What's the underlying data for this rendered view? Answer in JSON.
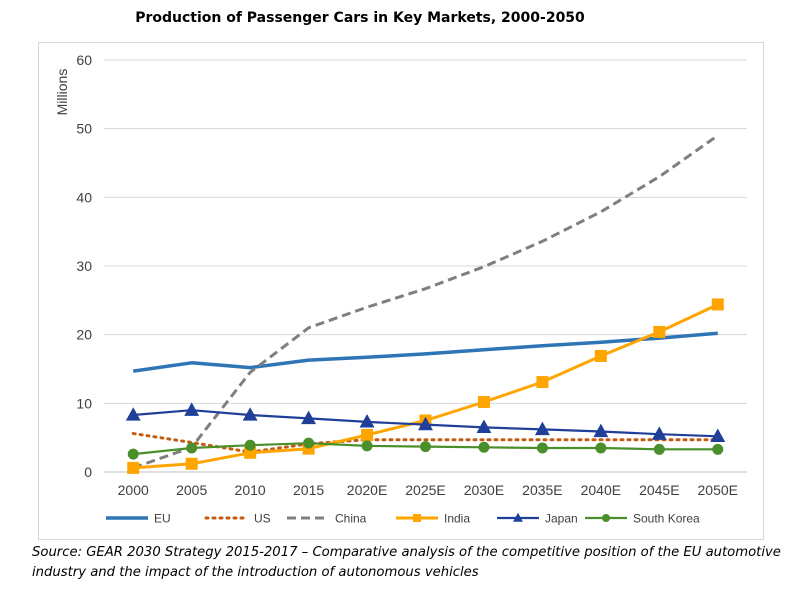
{
  "title": "Production of Passenger Cars in Key Markets, 2000-2050",
  "source": "Source: GEAR 2030 Strategy 2015-2017 – Comparative analysis of the competitive position of the EU automotive industry and the impact of the introduction of autonomous vehicles",
  "chart_data": {
    "type": "line",
    "title": "Production of Passenger Cars in Key Markets, 2000-2050",
    "xlabel": "",
    "ylabel": "Millions",
    "ylim": [
      0,
      60
    ],
    "yticks": [
      0,
      10,
      20,
      30,
      40,
      50,
      60
    ],
    "grid": true,
    "legend_position": "bottom",
    "categories": [
      "2000",
      "2005",
      "2010",
      "2015",
      "2020E",
      "2025E",
      "2030E",
      "2035E",
      "2040E",
      "2045E",
      "2050E"
    ],
    "series": [
      {
        "name": "EU",
        "color": "#2e75b6",
        "style": "solid",
        "marker": "none",
        "values": [
          14.7,
          15.9,
          15.2,
          16.3,
          16.7,
          17.2,
          17.8,
          18.4,
          18.9,
          19.5,
          20.2
        ]
      },
      {
        "name": "US",
        "color": "#c55a11",
        "style": "dotted",
        "marker": "none",
        "values": [
          5.6,
          4.3,
          2.9,
          4.1,
          4.7,
          4.7,
          4.7,
          4.7,
          4.7,
          4.7,
          4.7
        ]
      },
      {
        "name": "China",
        "color": "#7f7f7f",
        "style": "dashed",
        "marker": "none",
        "values": [
          0.6,
          3.6,
          14.5,
          21.0,
          24.0,
          26.7,
          29.9,
          33.6,
          37.9,
          43.0,
          49.0
        ]
      },
      {
        "name": "India",
        "color": "#ffa500",
        "style": "solid",
        "marker": "square",
        "values": [
          0.6,
          1.2,
          2.8,
          3.4,
          5.4,
          7.5,
          10.2,
          13.1,
          16.9,
          20.4,
          24.4
        ]
      },
      {
        "name": "Japan",
        "color": "#1f3f99",
        "style": "solid",
        "marker": "triangle",
        "values": [
          8.3,
          9.0,
          8.3,
          7.8,
          7.3,
          6.9,
          6.5,
          6.2,
          5.9,
          5.5,
          5.2
        ]
      },
      {
        "name": "South Korea",
        "color": "#4a8f2a",
        "style": "solid",
        "marker": "circle",
        "values": [
          2.6,
          3.5,
          3.9,
          4.2,
          3.8,
          3.7,
          3.6,
          3.5,
          3.5,
          3.3,
          3.3
        ]
      }
    ]
  }
}
